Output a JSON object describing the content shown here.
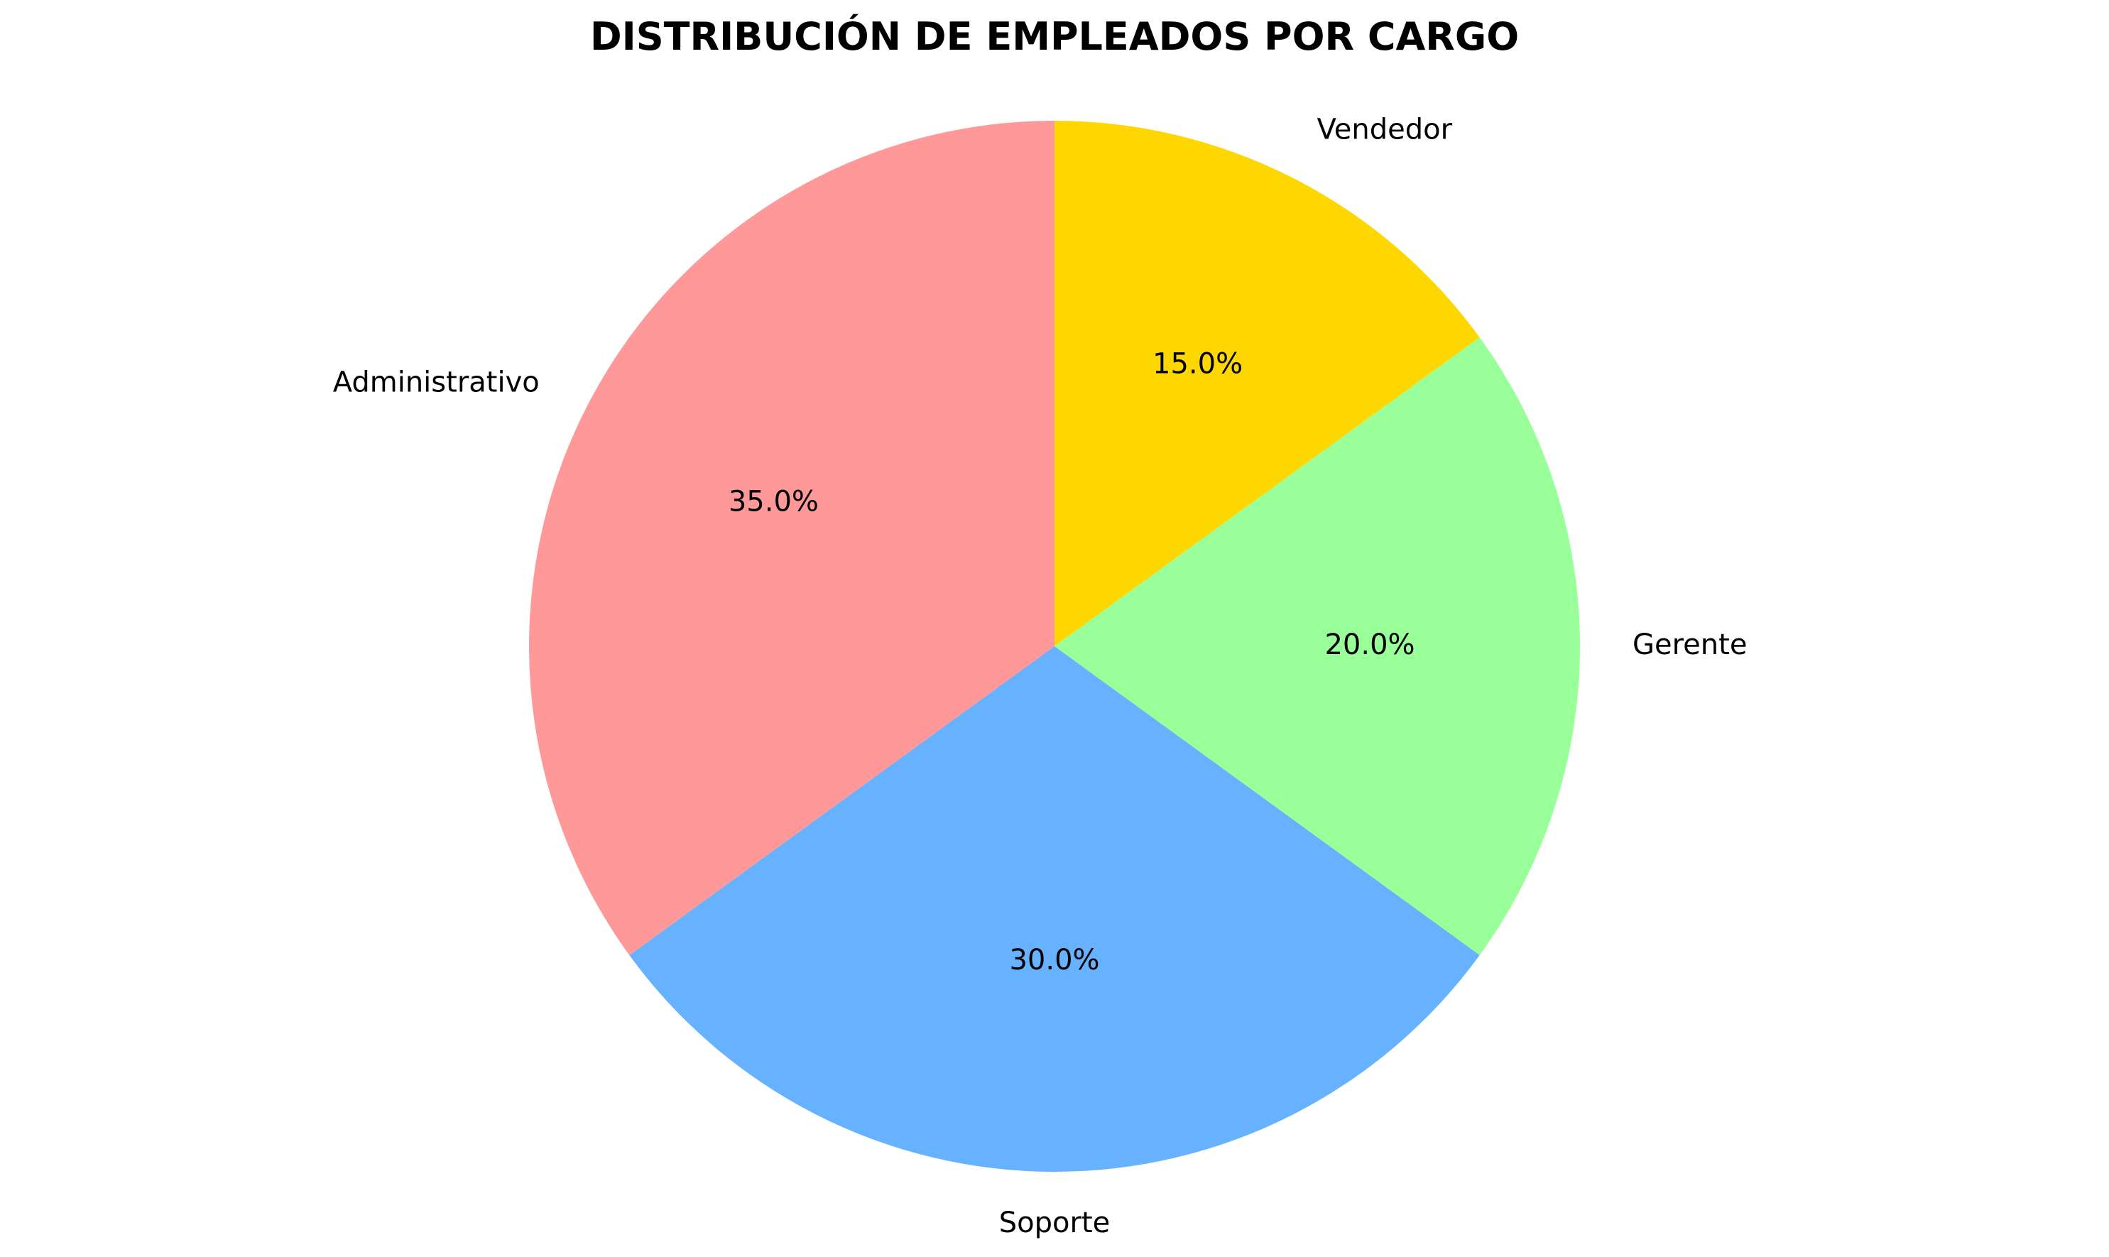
{
  "chart_data": {
    "type": "pie",
    "title": "DISTRIBUCIÓN DE EMPLEADOS POR CARGO",
    "categories": [
      "Vendedor",
      "Gerente",
      "Soporte",
      "Administrativo"
    ],
    "values": [
      15.0,
      20.0,
      30.0,
      35.0
    ],
    "value_labels": [
      "15.0%",
      "20.0%",
      "30.0%",
      "35.0%"
    ],
    "colors": [
      "#FFD700",
      "#99FF99",
      "#66B2FF",
      "#FF9999"
    ],
    "start_angle_deg": 90,
    "direction": "clockwise",
    "legend": "none"
  }
}
